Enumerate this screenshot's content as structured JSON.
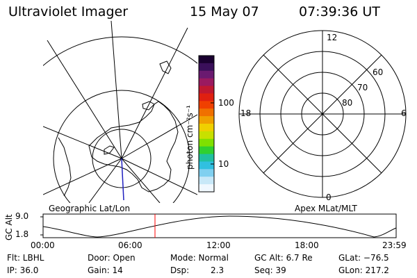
{
  "header": {
    "instrument": "Ultraviolet Imager",
    "date": "15 May 07",
    "time": "07:39:36 UT"
  },
  "colorbar": {
    "unit_label": "photon cm⁻²s⁻¹",
    "ticks": [
      "100",
      "10"
    ],
    "colors": [
      "#1a0030",
      "#3a0f5a",
      "#6a1a70",
      "#9a1a60",
      "#c01830",
      "#e02010",
      "#f04000",
      "#f07000",
      "#f0a000",
      "#f0d000",
      "#c8e000",
      "#80e000",
      "#30d030",
      "#20c0a0",
      "#30c0e0",
      "#80d0f0",
      "#c8e8f8",
      "#f0f8ff"
    ]
  },
  "geo_plot": {
    "caption": "Geographic Lat/Lon"
  },
  "mlt_plot": {
    "caption": "Apex MLat/MLT",
    "hour_labels": {
      "top": "12",
      "left": "18",
      "right": "6",
      "bottom": "0"
    },
    "lat_labels": [
      "60",
      "70",
      "80"
    ]
  },
  "timeline": {
    "ylabel": "GC Alt",
    "yticks": [
      "9.0",
      "1.8"
    ],
    "xticks": [
      "00:00",
      "06:00",
      "12:00",
      "18:00",
      "23:59"
    ],
    "marker_color": "#ff0000"
  },
  "status": {
    "flt": "Flt: LBHL",
    "ip": "IP: 36.0",
    "door": "Door: Open",
    "gain": "Gain: 14",
    "mode": "Mode: Normal",
    "dsp_label": "Dsp:",
    "dsp_value": "2.3",
    "gcalt": "GC Alt: 6.7 Re",
    "seq": "Seq: 39",
    "glat": "GLat: −76.5",
    "glon": "GLon: 217.2"
  }
}
